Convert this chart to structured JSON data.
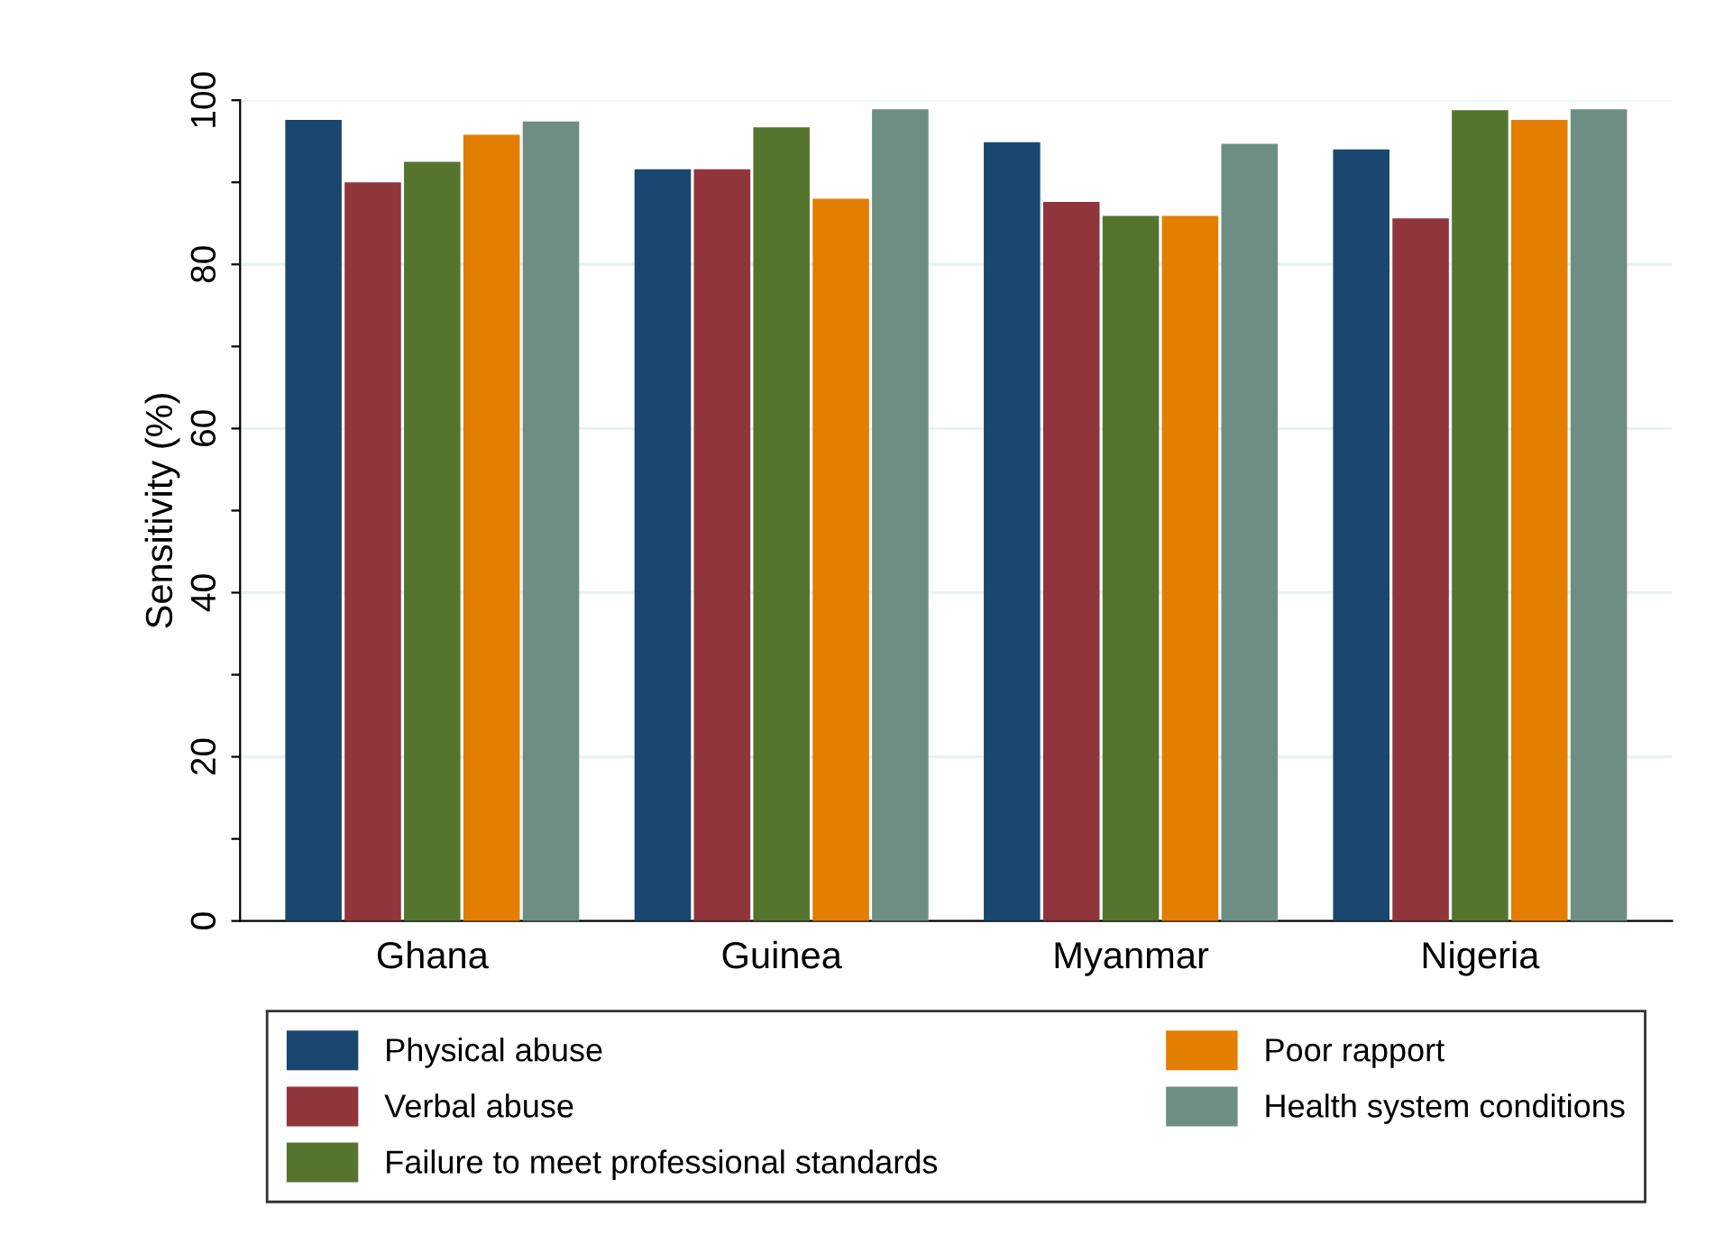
{
  "chart_data": {
    "type": "bar",
    "ylabel": "Sensitivity (%)",
    "categories": [
      "Ghana",
      "Guinea",
      "Myanmar",
      "Nigeria"
    ],
    "series": [
      {
        "name": "Physical abuse",
        "color": "#1a476f",
        "values": [
          97.6,
          91.6,
          94.9,
          94.0
        ]
      },
      {
        "name": "Verbal abuse",
        "color": "#90353b",
        "values": [
          90.0,
          91.6,
          87.6,
          85.6
        ]
      },
      {
        "name": "Failure to meet professional standards",
        "color": "#55752f",
        "values": [
          92.5,
          96.7,
          85.9,
          98.8
        ]
      },
      {
        "name": "Poor rapport",
        "color": "#e37e00",
        "values": [
          95.8,
          88.0,
          85.9,
          97.6
        ]
      },
      {
        "name": "Health system conditions",
        "color": "#6e8e84",
        "values": [
          97.4,
          98.9,
          94.7,
          98.9
        ]
      }
    ],
    "ylim": [
      0,
      100
    ],
    "yticks": [
      0,
      {
        "value": 10,
        "label": null
      },
      20,
      {
        "value": 30,
        "label": null
      },
      40,
      {
        "value": 50,
        "label": null
      },
      60,
      {
        "value": 70,
        "label": null
      },
      80,
      {
        "value": 90,
        "label": null
      },
      100
    ],
    "grid": "y",
    "legend": "bottom"
  }
}
